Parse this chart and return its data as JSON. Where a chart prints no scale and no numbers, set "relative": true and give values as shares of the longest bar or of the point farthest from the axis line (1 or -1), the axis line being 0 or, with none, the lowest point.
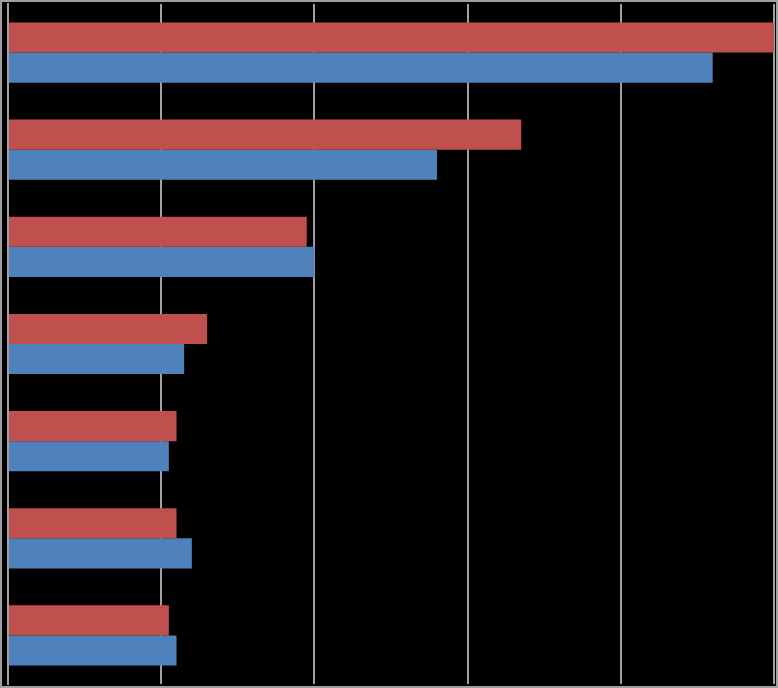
{
  "chart_data": {
    "type": "bar",
    "orientation": "horizontal",
    "relative": true,
    "grid": "x",
    "legend": false,
    "categories": [
      null,
      null,
      null,
      null,
      null,
      null,
      null
    ],
    "series": [
      {
        "color": "#c0504d",
        "values": [
          1,
          0.67,
          0.39,
          0.26,
          0.22,
          0.22,
          0.21
        ]
      },
      {
        "color": "#4f81bd",
        "values": [
          0.92,
          0.56,
          0.4,
          0.23,
          0.21,
          0.24,
          0.22
        ]
      }
    ]
  }
}
